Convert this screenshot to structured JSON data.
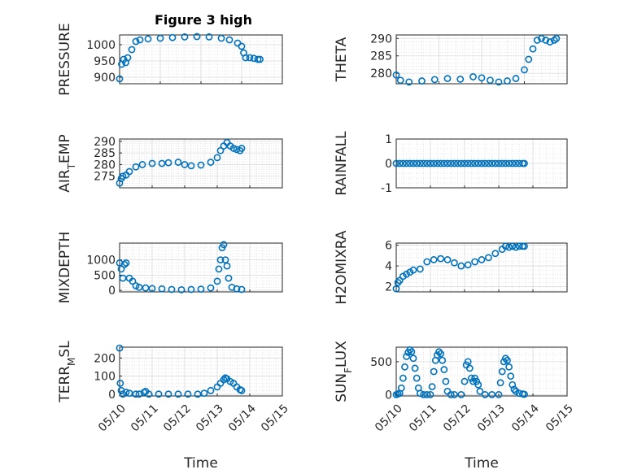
{
  "title": "Figure 3 high",
  "chart_data": [
    {
      "type": "scatter",
      "ylabel": "PRESSURE",
      "xlabel": "",
      "ylim": [
        880,
        1030
      ],
      "yticks": [
        900,
        950,
        1000
      ],
      "xlim": [
        0,
        4
      ],
      "xticks": [],
      "points": [
        [
          0.0,
          895
        ],
        [
          0.05,
          940
        ],
        [
          0.1,
          955
        ],
        [
          0.15,
          945
        ],
        [
          0.2,
          960
        ],
        [
          0.3,
          985
        ],
        [
          0.4,
          1010
        ],
        [
          0.5,
          1015
        ],
        [
          0.7,
          1018
        ],
        [
          1.0,
          1020
        ],
        [
          1.3,
          1022
        ],
        [
          1.6,
          1024
        ],
        [
          1.9,
          1025
        ],
        [
          2.2,
          1024
        ],
        [
          2.5,
          1020
        ],
        [
          2.7,
          1015
        ],
        [
          2.9,
          1005
        ],
        [
          3.0,
          995
        ],
        [
          3.05,
          975
        ],
        [
          3.1,
          960
        ],
        [
          3.2,
          960
        ],
        [
          3.3,
          958
        ],
        [
          3.4,
          955
        ],
        [
          3.45,
          955
        ]
      ]
    },
    {
      "type": "scatter",
      "ylabel": "THETA",
      "xlabel": "",
      "ylim": [
        277,
        291
      ],
      "yticks": [
        280,
        285,
        290
      ],
      "xlim": [
        0,
        4
      ],
      "xticks": [],
      "points": [
        [
          0.0,
          279.5
        ],
        [
          0.1,
          278
        ],
        [
          0.3,
          277.5
        ],
        [
          0.6,
          277.8
        ],
        [
          0.9,
          278.2
        ],
        [
          1.2,
          278.5
        ],
        [
          1.5,
          278.3
        ],
        [
          1.8,
          279
        ],
        [
          2.0,
          278.7
        ],
        [
          2.2,
          278
        ],
        [
          2.4,
          277.5
        ],
        [
          2.6,
          277.8
        ],
        [
          2.8,
          278.5
        ],
        [
          3.0,
          281
        ],
        [
          3.1,
          284
        ],
        [
          3.2,
          287
        ],
        [
          3.3,
          289.5
        ],
        [
          3.4,
          290
        ],
        [
          3.5,
          289.5
        ],
        [
          3.6,
          289
        ],
        [
          3.7,
          289.5
        ],
        [
          3.75,
          290
        ]
      ]
    },
    {
      "type": "scatter",
      "ylabel": "AIR_TEMP",
      "xlabel": "",
      "ylim": [
        270,
        291
      ],
      "yticks": [
        275,
        280,
        285,
        290
      ],
      "xlim": [
        0,
        5
      ],
      "xticks": [],
      "points": [
        [
          0.0,
          272
        ],
        [
          0.05,
          274
        ],
        [
          0.1,
          275
        ],
        [
          0.2,
          275.5
        ],
        [
          0.3,
          277
        ],
        [
          0.5,
          279
        ],
        [
          0.7,
          280
        ],
        [
          1.0,
          280.5
        ],
        [
          1.3,
          280.5
        ],
        [
          1.5,
          280.8
        ],
        [
          1.8,
          281
        ],
        [
          2.0,
          280
        ],
        [
          2.2,
          279.5
        ],
        [
          2.5,
          279.8
        ],
        [
          2.8,
          281
        ],
        [
          3.0,
          283
        ],
        [
          3.1,
          286
        ],
        [
          3.2,
          288
        ],
        [
          3.3,
          289.5
        ],
        [
          3.4,
          288
        ],
        [
          3.5,
          287
        ],
        [
          3.6,
          286.5
        ],
        [
          3.7,
          286
        ],
        [
          3.75,
          287
        ]
      ]
    },
    {
      "type": "scatter",
      "ylabel": "RAINFALL",
      "xlabel": "",
      "ylim": [
        -1,
        1
      ],
      "yticks": [
        -1,
        0,
        1
      ],
      "xlim": [
        0,
        5
      ],
      "xticks": [],
      "points": [
        [
          0.0,
          0
        ],
        [
          0.1,
          0
        ],
        [
          0.2,
          0
        ],
        [
          0.3,
          0
        ],
        [
          0.4,
          0
        ],
        [
          0.5,
          0
        ],
        [
          0.6,
          0
        ],
        [
          0.7,
          0
        ],
        [
          0.8,
          0
        ],
        [
          0.9,
          0
        ],
        [
          1.0,
          0
        ],
        [
          1.1,
          0
        ],
        [
          1.2,
          0
        ],
        [
          1.3,
          0
        ],
        [
          1.4,
          0
        ],
        [
          1.5,
          0
        ],
        [
          1.6,
          0
        ],
        [
          1.7,
          0
        ],
        [
          1.8,
          0
        ],
        [
          1.9,
          0
        ],
        [
          2.0,
          0
        ],
        [
          2.1,
          0
        ],
        [
          2.2,
          0
        ],
        [
          2.3,
          0
        ],
        [
          2.4,
          0
        ],
        [
          2.5,
          0
        ],
        [
          2.6,
          0
        ],
        [
          2.7,
          0
        ],
        [
          2.8,
          0
        ],
        [
          2.9,
          0
        ],
        [
          3.0,
          0
        ],
        [
          3.1,
          0
        ],
        [
          3.2,
          0
        ],
        [
          3.3,
          0
        ],
        [
          3.4,
          0
        ],
        [
          3.5,
          0
        ],
        [
          3.6,
          0
        ],
        [
          3.7,
          0
        ],
        [
          3.75,
          0
        ]
      ]
    },
    {
      "type": "scatter",
      "ylabel": "MIXDEPTH",
      "xlabel": "",
      "ylim": [
        -50,
        1550
      ],
      "yticks": [
        0,
        500,
        1000
      ],
      "xlim": [
        0,
        5
      ],
      "xticks": [],
      "points": [
        [
          0.0,
          900
        ],
        [
          0.05,
          700
        ],
        [
          0.1,
          400
        ],
        [
          0.15,
          850
        ],
        [
          0.2,
          900
        ],
        [
          0.3,
          400
        ],
        [
          0.4,
          300
        ],
        [
          0.5,
          150
        ],
        [
          0.6,
          100
        ],
        [
          0.8,
          80
        ],
        [
          1.0,
          60
        ],
        [
          1.3,
          50
        ],
        [
          1.6,
          30
        ],
        [
          1.9,
          20
        ],
        [
          2.2,
          30
        ],
        [
          2.5,
          40
        ],
        [
          2.8,
          80
        ],
        [
          3.0,
          300
        ],
        [
          3.05,
          700
        ],
        [
          3.1,
          1000
        ],
        [
          3.15,
          1400
        ],
        [
          3.2,
          1500
        ],
        [
          3.25,
          1000
        ],
        [
          3.3,
          800
        ],
        [
          3.35,
          400
        ],
        [
          3.45,
          100
        ],
        [
          3.6,
          50
        ],
        [
          3.75,
          30
        ]
      ]
    },
    {
      "type": "scatter",
      "ylabel": "H2OMIXRA",
      "xlabel": "",
      "ylim": [
        1.5,
        6.2
      ],
      "yticks": [
        2,
        4,
        6
      ],
      "xlim": [
        0,
        5
      ],
      "xticks": [],
      "points": [
        [
          0.0,
          1.8
        ],
        [
          0.05,
          2.4
        ],
        [
          0.1,
          2.6
        ],
        [
          0.2,
          3.0
        ],
        [
          0.3,
          3.2
        ],
        [
          0.4,
          3.4
        ],
        [
          0.5,
          3.6
        ],
        [
          0.7,
          3.7
        ],
        [
          0.9,
          4.4
        ],
        [
          1.1,
          4.6
        ],
        [
          1.3,
          4.7
        ],
        [
          1.5,
          4.6
        ],
        [
          1.7,
          4.3
        ],
        [
          1.9,
          4.0
        ],
        [
          2.1,
          4.1
        ],
        [
          2.3,
          4.4
        ],
        [
          2.5,
          4.6
        ],
        [
          2.7,
          4.8
        ],
        [
          2.9,
          5.2
        ],
        [
          3.1,
          5.6
        ],
        [
          3.2,
          5.9
        ],
        [
          3.3,
          5.8
        ],
        [
          3.4,
          5.9
        ],
        [
          3.5,
          5.8
        ],
        [
          3.6,
          5.9
        ],
        [
          3.7,
          5.9
        ],
        [
          3.75,
          5.9
        ]
      ]
    },
    {
      "type": "scatter",
      "ylabel": "TERR_MSL",
      "xlabel": "Time",
      "ylim": [
        -10,
        260
      ],
      "yticks": [
        0,
        100,
        200
      ],
      "xlim": [
        0,
        5
      ],
      "xticks": [
        "05/10",
        "05/11",
        "05/12",
        "05/13",
        "05/14",
        "05/15"
      ],
      "points": [
        [
          0.0,
          255
        ],
        [
          0.02,
          60
        ],
        [
          0.05,
          20
        ],
        [
          0.1,
          0
        ],
        [
          0.2,
          10
        ],
        [
          0.3,
          5
        ],
        [
          0.5,
          0
        ],
        [
          0.6,
          0
        ],
        [
          0.75,
          10
        ],
        [
          0.8,
          15
        ],
        [
          0.9,
          0
        ],
        [
          1.2,
          0
        ],
        [
          1.5,
          0
        ],
        [
          1.8,
          0
        ],
        [
          2.1,
          0
        ],
        [
          2.4,
          0
        ],
        [
          2.6,
          5
        ],
        [
          2.8,
          20
        ],
        [
          3.0,
          40
        ],
        [
          3.1,
          60
        ],
        [
          3.2,
          80
        ],
        [
          3.25,
          90
        ],
        [
          3.3,
          85
        ],
        [
          3.4,
          70
        ],
        [
          3.5,
          60
        ],
        [
          3.6,
          40
        ],
        [
          3.7,
          25
        ],
        [
          3.75,
          20
        ]
      ]
    },
    {
      "type": "scatter",
      "ylabel": "SUN_FLUX",
      "xlabel": "Time",
      "ylim": [
        -20,
        720
      ],
      "yticks": [
        0,
        500
      ],
      "xlim": [
        0,
        5
      ],
      "xticks": [
        "05/10",
        "05/11",
        "05/12",
        "05/13",
        "05/14",
        "05/15"
      ],
      "points": [
        [
          0.0,
          0
        ],
        [
          0.05,
          10
        ],
        [
          0.1,
          20
        ],
        [
          0.15,
          100
        ],
        [
          0.2,
          250
        ],
        [
          0.25,
          420
        ],
        [
          0.3,
          580
        ],
        [
          0.35,
          640
        ],
        [
          0.4,
          680
        ],
        [
          0.45,
          650
        ],
        [
          0.5,
          550
        ],
        [
          0.55,
          400
        ],
        [
          0.6,
          250
        ],
        [
          0.65,
          100
        ],
        [
          0.7,
          20
        ],
        [
          0.8,
          0
        ],
        [
          0.9,
          0
        ],
        [
          1.0,
          0
        ],
        [
          1.05,
          120
        ],
        [
          1.1,
          350
        ],
        [
          1.15,
          520
        ],
        [
          1.2,
          600
        ],
        [
          1.25,
          650
        ],
        [
          1.3,
          620
        ],
        [
          1.35,
          520
        ],
        [
          1.4,
          380
        ],
        [
          1.45,
          200
        ],
        [
          1.5,
          50
        ],
        [
          1.6,
          0
        ],
        [
          1.7,
          0
        ],
        [
          1.9,
          0
        ],
        [
          2.0,
          200
        ],
        [
          2.05,
          450
        ],
        [
          2.1,
          500
        ],
        [
          2.15,
          400
        ],
        [
          2.2,
          250
        ],
        [
          2.25,
          200
        ],
        [
          2.3,
          250
        ],
        [
          2.35,
          200
        ],
        [
          2.4,
          150
        ],
        [
          2.45,
          50
        ],
        [
          2.6,
          0
        ],
        [
          2.8,
          0
        ],
        [
          3.0,
          0
        ],
        [
          3.05,
          180
        ],
        [
          3.1,
          350
        ],
        [
          3.15,
          500
        ],
        [
          3.2,
          550
        ],
        [
          3.25,
          520
        ],
        [
          3.3,
          420
        ],
        [
          3.35,
          280
        ],
        [
          3.4,
          150
        ],
        [
          3.45,
          80
        ],
        [
          3.5,
          50
        ],
        [
          3.6,
          20
        ],
        [
          3.7,
          10
        ],
        [
          3.75,
          5
        ]
      ]
    }
  ]
}
